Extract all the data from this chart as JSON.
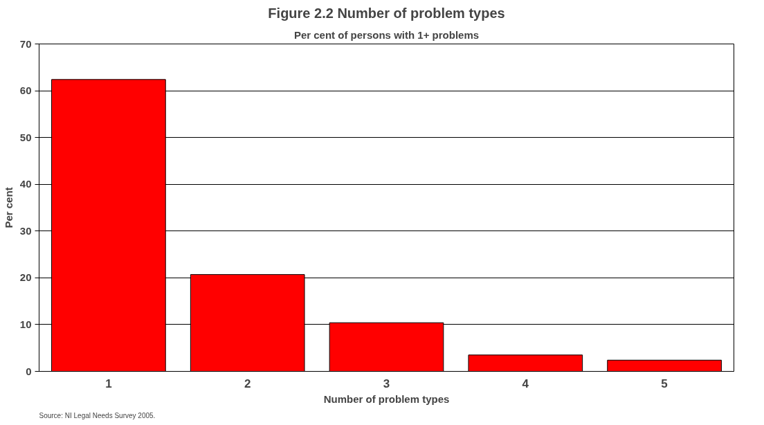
{
  "chart_data": {
    "type": "bar",
    "title": "Figure 2.2 Number of problem types",
    "subtitle": "Per cent of persons with 1+ problems",
    "xlabel": "Number of problem types",
    "ylabel": "Per cent",
    "categories": [
      "1",
      "2",
      "3",
      "4",
      "5"
    ],
    "values": [
      62.4,
      20.7,
      10.4,
      3.5,
      2.4
    ],
    "color": "#ff0000",
    "ylim": [
      0,
      70
    ],
    "yticks": [
      0,
      10,
      20,
      30,
      40,
      50,
      60,
      70
    ],
    "grid": "y",
    "annotations": [
      "Source: NI Legal Needs Survey 2005."
    ]
  }
}
